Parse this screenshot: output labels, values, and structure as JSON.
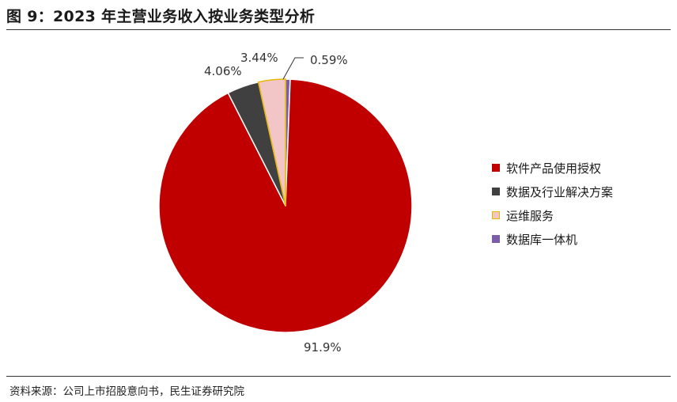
{
  "title": "图 9：2023 年主营业务收入按业务类型分析",
  "source": "资料来源：公司上市招股意向书，民生证券研究院",
  "chart_data": {
    "type": "pie",
    "title": "图 9：2023 年主营业务收入按业务类型分析",
    "start_angle": 0,
    "direction": "clockwise",
    "legend_position": "right",
    "slices": [
      {
        "name": "数据库一体机",
        "value": 0.59,
        "label": "0.59%",
        "color": "#7b5ea7",
        "stroke": "#7b5ea7"
      },
      {
        "name": "软件产品使用授权",
        "value": 91.9,
        "label": "91.9%",
        "color": "#c00000",
        "stroke": "#c00000"
      },
      {
        "name": "数据及行业解决方案",
        "value": 4.06,
        "label": "4.06%",
        "color": "#404040",
        "stroke": "#404040"
      },
      {
        "name": "运维服务",
        "value": 3.44,
        "label": "3.44%",
        "color": "#f2c6c6",
        "stroke": "#e6b800"
      }
    ],
    "legend": [
      "软件产品使用授权",
      "数据及行业解决方案",
      "运维服务",
      "数据库一体机"
    ]
  }
}
